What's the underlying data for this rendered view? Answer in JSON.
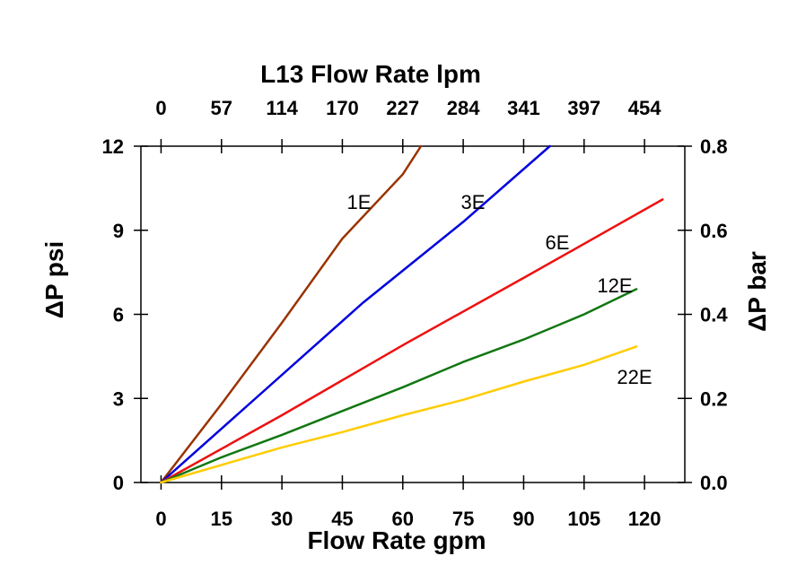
{
  "chart_data": {
    "type": "line",
    "title": "L13 Flow Rate lpm",
    "xlabel": "Flow Rate gpm",
    "ylabel": "ΔP psi",
    "y2label": "ΔP bar",
    "xlim": [
      -5,
      130
    ],
    "ylim": [
      0,
      12
    ],
    "y2lim": [
      0,
      0.8
    ],
    "x_ticks": [
      "0",
      "15",
      "30",
      "45",
      "60",
      "75",
      "90",
      "105",
      "120"
    ],
    "y_ticks": [
      "0",
      "3",
      "6",
      "9",
      "12"
    ],
    "y2_ticks": [
      "0.0",
      "0.2",
      "0.4",
      "0.6",
      "0.8"
    ],
    "top_ticks": [
      "0",
      "57",
      "114",
      "170",
      "227",
      "284",
      "341",
      "397",
      "454"
    ],
    "series": [
      {
        "name": "1E",
        "color": "#993300",
        "x": [
          0,
          15,
          30,
          45,
          60,
          64.5
        ],
        "y": [
          0,
          2.8,
          5.7,
          8.7,
          11.0,
          12.0
        ]
      },
      {
        "name": "3E",
        "color": "#0000dd",
        "x": [
          0,
          25,
          50,
          75,
          96.5
        ],
        "y": [
          0,
          3.2,
          6.4,
          9.3,
          12.0
        ]
      },
      {
        "name": "6E",
        "color": "#ee1111",
        "x": [
          0,
          30,
          60,
          90,
          124.5
        ],
        "y": [
          0,
          2.4,
          4.9,
          7.3,
          10.1
        ]
      },
      {
        "name": "12E",
        "color": "#117711",
        "x": [
          0,
          15,
          30,
          45,
          60,
          75,
          90,
          105,
          118
        ],
        "y": [
          0,
          0.9,
          1.7,
          2.55,
          3.4,
          4.3,
          5.1,
          6.0,
          6.9
        ]
      },
      {
        "name": "22E",
        "color": "#ffcc00",
        "x": [
          0,
          30,
          45,
          60,
          75,
          90,
          105,
          118
        ],
        "y": [
          0,
          1.25,
          1.8,
          2.4,
          2.95,
          3.6,
          4.2,
          4.85
        ]
      }
    ]
  }
}
